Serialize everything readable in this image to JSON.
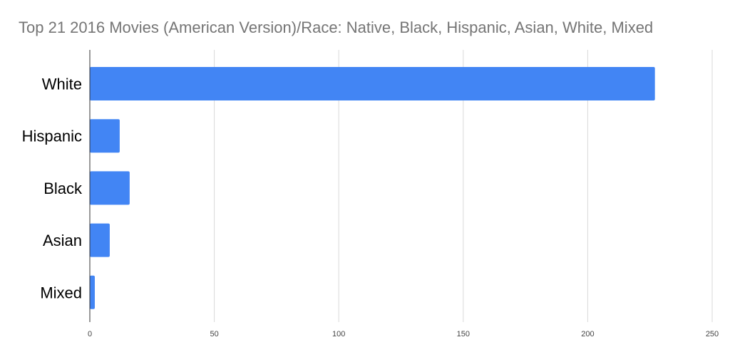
{
  "chart_data": {
    "type": "bar",
    "orientation": "horizontal",
    "title": "Top 21 2016 Movies (American Version)/Race: Native, Black, Hispanic, Asian, White, Mixed",
    "xlabel": "",
    "ylabel": "",
    "categories": [
      "White",
      "Hispanic",
      "Black",
      "Asian",
      "Mixed"
    ],
    "values": [
      227,
      12,
      16,
      8,
      2
    ],
    "xlim": [
      0,
      250
    ],
    "xticks": [
      "0",
      "50",
      "100",
      "150",
      "200",
      "250"
    ],
    "grid": true,
    "legend": "none",
    "bar_color": "#4285f4"
  }
}
